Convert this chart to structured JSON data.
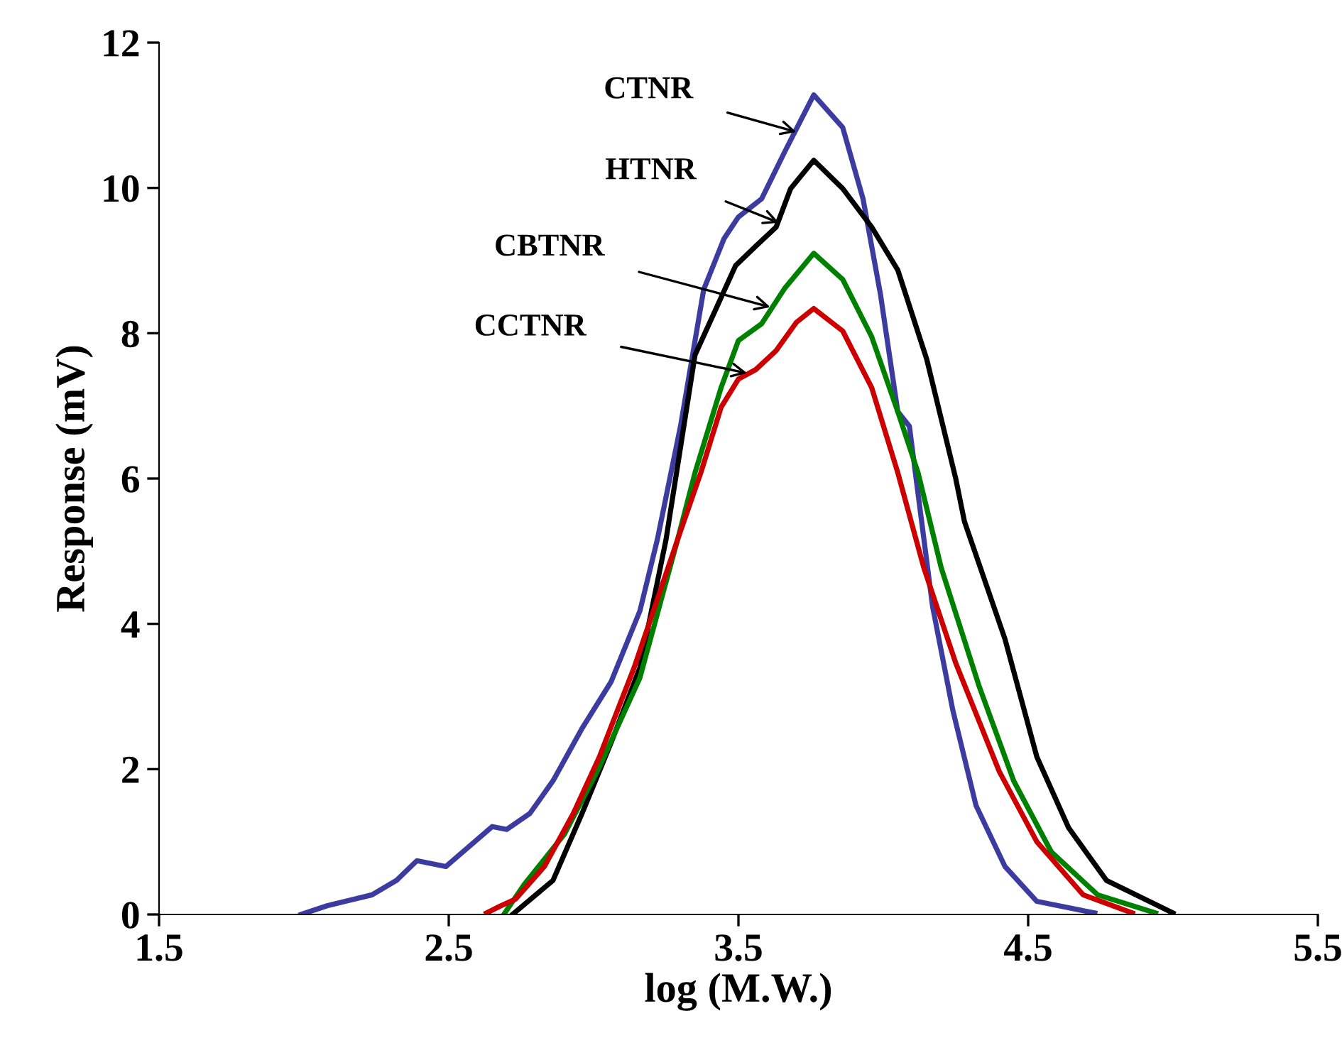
{
  "chart_data": {
    "type": "line",
    "xlabel": "log (M.W.)",
    "ylabel": "Response (mV)",
    "xlim": [
      1.5,
      5.5
    ],
    "xticks": [
      1.5,
      2.5,
      3.5,
      4.5,
      5.5
    ],
    "ylim": [
      0,
      12
    ],
    "yticks": [
      0,
      2,
      4,
      6,
      8,
      10,
      12
    ],
    "grid": false,
    "marker": "none",
    "line_style": "solid",
    "series": [
      {
        "color": "#3c3ca0",
        "x": [
          1.99,
          2.08,
          2.235,
          2.32,
          2.39,
          2.49,
          2.65,
          2.7,
          2.78,
          2.86,
          2.96,
          3.06,
          3.16,
          3.22,
          3.3,
          3.38,
          3.45,
          3.5,
          3.58,
          3.66,
          3.76,
          3.86,
          3.93,
          3.99,
          4.05,
          4.09,
          4.17,
          4.24,
          4.32,
          4.42,
          4.53,
          4.73
        ],
        "values": [
          0,
          0.12,
          0.27,
          0.47,
          0.74,
          0.66,
          1.21,
          1.17,
          1.39,
          1.84,
          2.56,
          3.2,
          4.18,
          5.16,
          6.72,
          8.6,
          9.3,
          9.6,
          9.85,
          10.5,
          11.28,
          10.83,
          9.85,
          8.54,
          6.92,
          6.72,
          4.24,
          2.81,
          1.5,
          0.66,
          0.18,
          0.02
        ]
      },
      {
        "color": "#000000",
        "x": [
          2.72,
          2.86,
          2.96,
          3.06,
          3.16,
          3.25,
          3.35,
          3.49,
          3.56,
          3.63,
          3.68,
          3.76,
          3.86,
          3.96,
          4.05,
          4.15,
          4.25,
          4.28,
          4.42,
          4.53,
          4.64,
          4.77,
          5.0
        ],
        "values": [
          0,
          0.47,
          1.39,
          2.36,
          3.4,
          5.16,
          7.7,
          8.93,
          9.2,
          9.46,
          9.99,
          10.38,
          9.99,
          9.46,
          8.87,
          7.64,
          6.0,
          5.41,
          3.79,
          2.17,
          1.19,
          0.47,
          0.02
        ]
      },
      {
        "color": "#008000",
        "x": [
          2.69,
          2.76,
          2.9,
          3.02,
          3.16,
          3.29,
          3.35,
          3.44,
          3.5,
          3.58,
          3.66,
          3.76,
          3.86,
          3.96,
          4.05,
          4.12,
          4.2,
          4.33,
          4.45,
          4.58,
          4.74,
          4.94
        ],
        "values": [
          0,
          0.41,
          1.11,
          2.03,
          3.26,
          5.16,
          6.08,
          7.25,
          7.9,
          8.13,
          8.62,
          9.1,
          8.74,
          7.95,
          6.92,
          6.08,
          4.77,
          3.15,
          1.84,
          0.86,
          0.27,
          0.02
        ]
      },
      {
        "color": "#cc0000",
        "x": [
          2.63,
          2.68,
          2.73,
          2.83,
          2.93,
          3.02,
          3.14,
          3.29,
          3.37,
          3.44,
          3.5,
          3.56,
          3.63,
          3.7,
          3.76,
          3.86,
          3.96,
          4.05,
          4.14,
          4.25,
          4.4,
          4.53,
          4.69,
          4.86
        ],
        "values": [
          0.02,
          0.12,
          0.21,
          0.66,
          1.39,
          2.17,
          3.4,
          5.16,
          6.08,
          6.98,
          7.37,
          7.5,
          7.76,
          8.15,
          8.34,
          8.03,
          7.25,
          6.08,
          4.77,
          3.46,
          1.97,
          1.0,
          0.27,
          0.02
        ]
      }
    ],
    "annotations": [
      {
        "text": "CTNR",
        "x": 3.7,
        "y": 10.77
      },
      {
        "text": "HTNR",
        "x": 3.64,
        "y": 9.52
      },
      {
        "text": "CBTNR",
        "x": 3.61,
        "y": 8.36
      },
      {
        "text": "CCTNR",
        "x": 3.53,
        "y": 7.45
      }
    ]
  }
}
